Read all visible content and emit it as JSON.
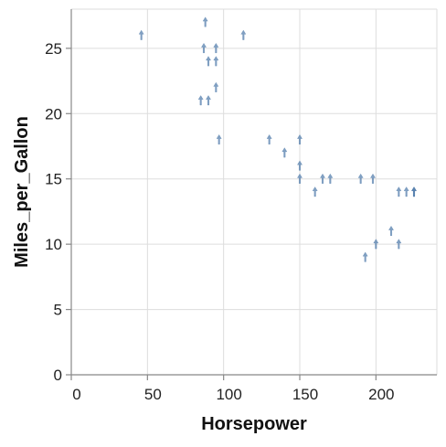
{
  "chart_data": {
    "type": "scatter",
    "mark": "arrow-up",
    "xlabel": "Horsepower",
    "ylabel": "Miles_per_Gallon",
    "xlim": [
      0,
      240
    ],
    "ylim": [
      0,
      28
    ],
    "x_ticks": [
      0,
      50,
      100,
      150,
      200
    ],
    "y_ticks": [
      0,
      5,
      10,
      15,
      20,
      25
    ],
    "grid": true,
    "color": "#4c78a8",
    "points": [
      {
        "x": 46,
        "y": 26
      },
      {
        "x": 88,
        "y": 27
      },
      {
        "x": 87,
        "y": 25
      },
      {
        "x": 95,
        "y": 25
      },
      {
        "x": 113,
        "y": 26
      },
      {
        "x": 90,
        "y": 24
      },
      {
        "x": 95,
        "y": 24
      },
      {
        "x": 95,
        "y": 22
      },
      {
        "x": 85,
        "y": 21
      },
      {
        "x": 90,
        "y": 21
      },
      {
        "x": 97,
        "y": 18
      },
      {
        "x": 130,
        "y": 18
      },
      {
        "x": 150,
        "y": 18
      },
      {
        "x": 140,
        "y": 17
      },
      {
        "x": 150,
        "y": 16
      },
      {
        "x": 150,
        "y": 15
      },
      {
        "x": 165,
        "y": 15
      },
      {
        "x": 170,
        "y": 15
      },
      {
        "x": 190,
        "y": 15
      },
      {
        "x": 198,
        "y": 15
      },
      {
        "x": 160,
        "y": 14
      },
      {
        "x": 215,
        "y": 14
      },
      {
        "x": 220,
        "y": 14
      },
      {
        "x": 225,
        "y": 14
      },
      {
        "x": 225,
        "y": 14
      },
      {
        "x": 210,
        "y": 11
      },
      {
        "x": 200,
        "y": 10
      },
      {
        "x": 215,
        "y": 10
      },
      {
        "x": 193,
        "y": 9
      }
    ]
  }
}
